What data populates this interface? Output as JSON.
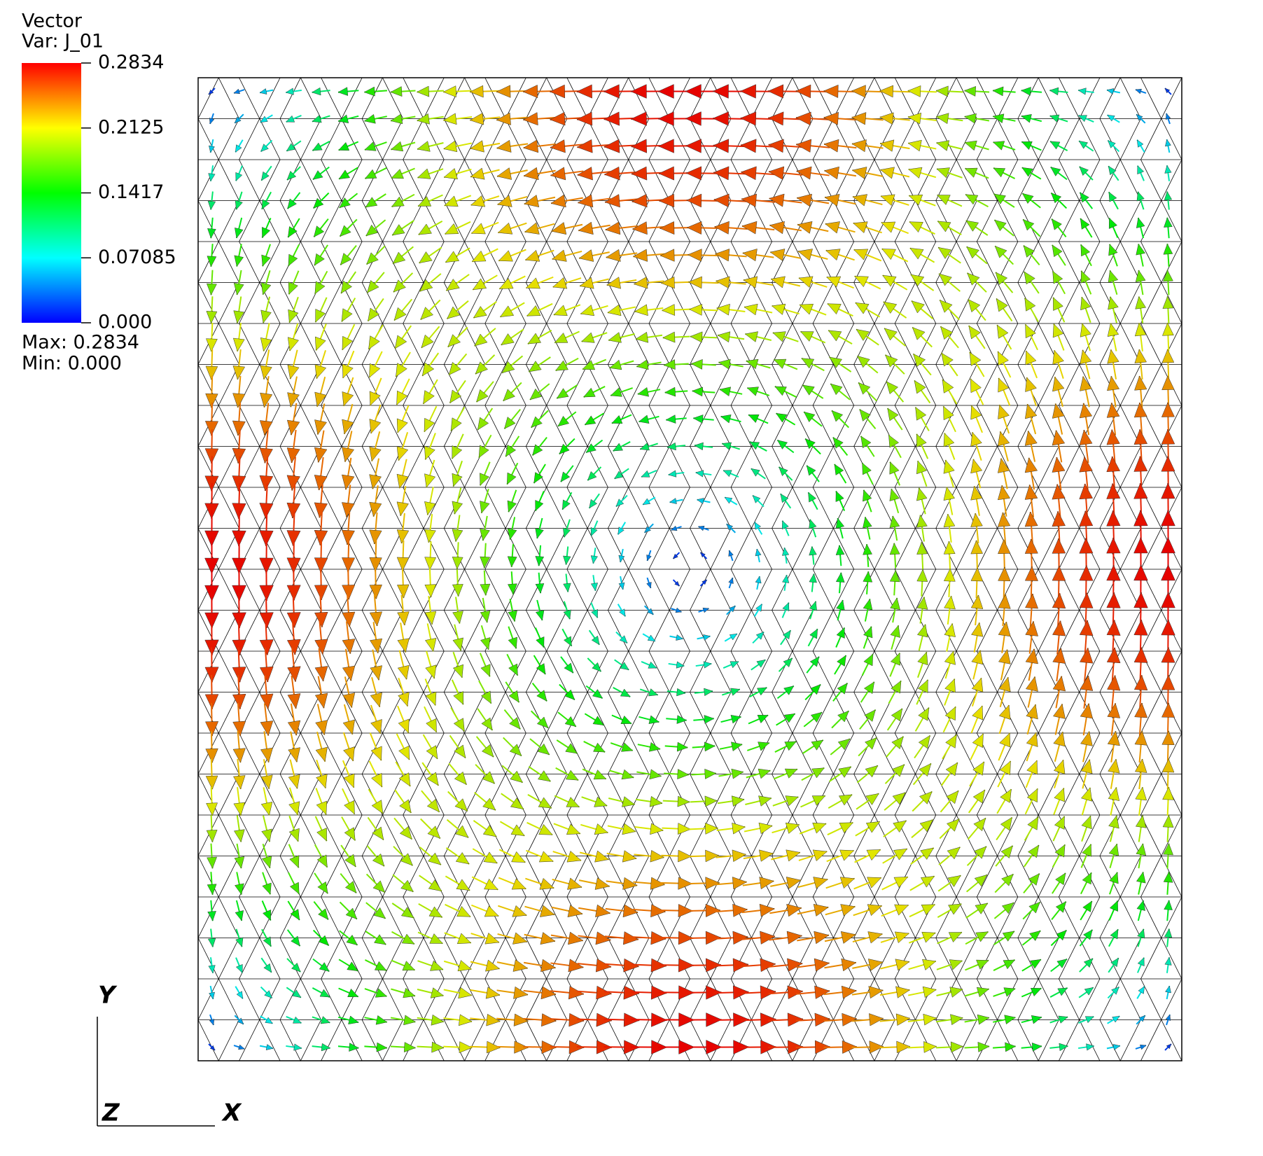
{
  "chart_data": {
    "type": "vector",
    "legend_title": "Vector",
    "variable": "Var: J_01",
    "ylim": [
      0,
      0.2834
    ],
    "yticks": [
      0.2834,
      0.2125,
      0.1417,
      0.07085,
      {
        "value": 0,
        "label": "0.000"
      }
    ],
    "max_text": "Max:  0.2834",
    "min_text": "Min:  0.000",
    "axis_labels": {
      "x": "X",
      "y": "Y",
      "z": "Z"
    }
  }
}
